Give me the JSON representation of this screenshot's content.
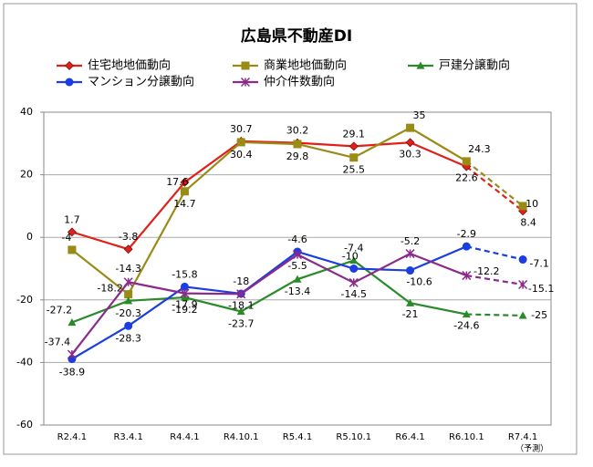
{
  "chart_data": {
    "type": "line",
    "title": "広島県不動産DI",
    "categories": [
      "R2.4.1",
      "R3.4.1",
      "R4.4.1",
      "R4.10.1",
      "R5.4.1",
      "R5.10.1",
      "R6.4.1",
      "R6.10.1",
      "R7.4.1"
    ],
    "forecast_note": "（予測）",
    "dashed_last_segment": true,
    "ylim": [
      -60,
      40
    ],
    "yticks": [
      -60,
      -40,
      -20,
      0,
      20,
      40
    ],
    "grid": true,
    "series": [
      {
        "name": "住宅地地価動向",
        "color": "#e0201a",
        "marker": "diamond",
        "values": [
          1.7,
          -3.8,
          17.6,
          30.7,
          30.2,
          29.1,
          30.3,
          22.6,
          8.4
        ]
      },
      {
        "name": "商業地地価動向",
        "color": "#9a8a16",
        "marker": "square",
        "values": [
          -4,
          -18.2,
          14.7,
          30.4,
          29.8,
          25.5,
          35,
          24.3,
          10
        ]
      },
      {
        "name": "戸建分譲動向",
        "color": "#2a8a2a",
        "marker": "triangle",
        "values": [
          -27.2,
          -20.3,
          -19.2,
          -23.7,
          -13.4,
          -7.4,
          -21,
          -24.6,
          -25
        ]
      },
      {
        "name": "マンション分譲動向",
        "color": "#1a3ee0",
        "marker": "circle",
        "values": [
          -38.9,
          -28.3,
          -15.8,
          -18,
          -4.6,
          -10,
          -10.6,
          -2.9,
          -7.1
        ]
      },
      {
        "name": "仲介件数動向",
        "color": "#8a2a8a",
        "marker": "star",
        "values": [
          -37.4,
          -14.3,
          -17.9,
          -18.1,
          -5.5,
          -14.5,
          -5.2,
          -12.2,
          -15.1
        ]
      }
    ]
  }
}
